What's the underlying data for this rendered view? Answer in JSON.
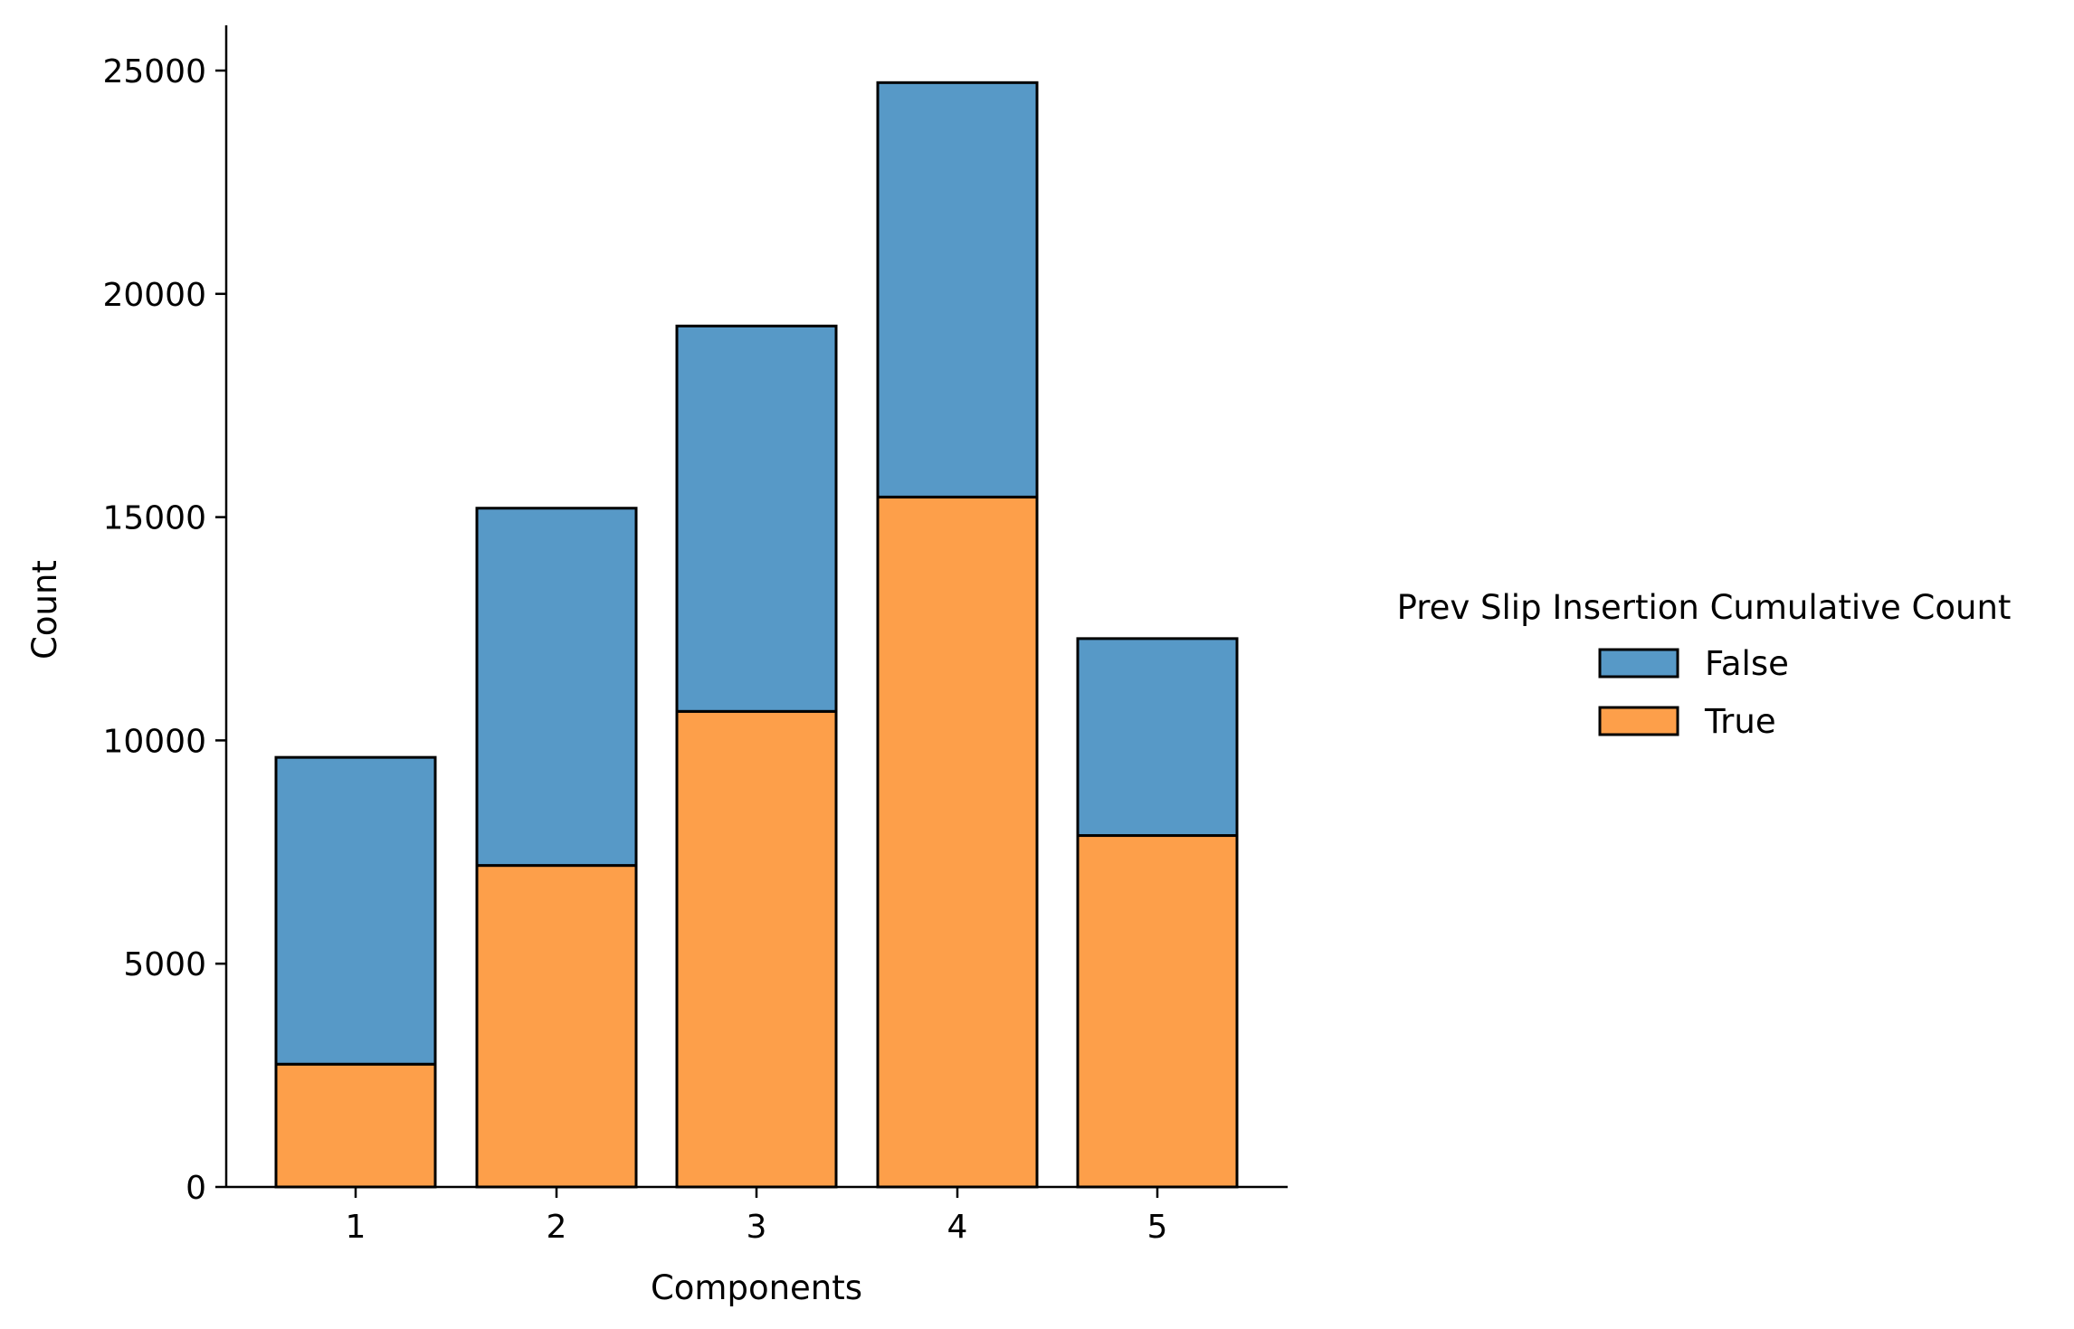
{
  "chart_data": {
    "type": "bar",
    "stacked": true,
    "categories": [
      "1",
      "2",
      "3",
      "4",
      "5"
    ],
    "series": [
      {
        "name": "True",
        "color": "#fd9f4a",
        "values": [
          2750,
          7200,
          10650,
          15450,
          7870
        ]
      },
      {
        "name": "False",
        "color": "#5799c7",
        "values": [
          6870,
          8000,
          8630,
          9280,
          4410
        ]
      }
    ],
    "xlabel": "Components",
    "ylabel": "Count",
    "ylim": [
      0,
      26000
    ],
    "yticks": [
      "0",
      "5000",
      "10000",
      "15000",
      "20000",
      "25000"
    ],
    "legend": {
      "title": "Prev Slip Insertion Cumulative Count",
      "entries": [
        "False",
        "True"
      ],
      "placement": "right"
    },
    "grid": false
  }
}
